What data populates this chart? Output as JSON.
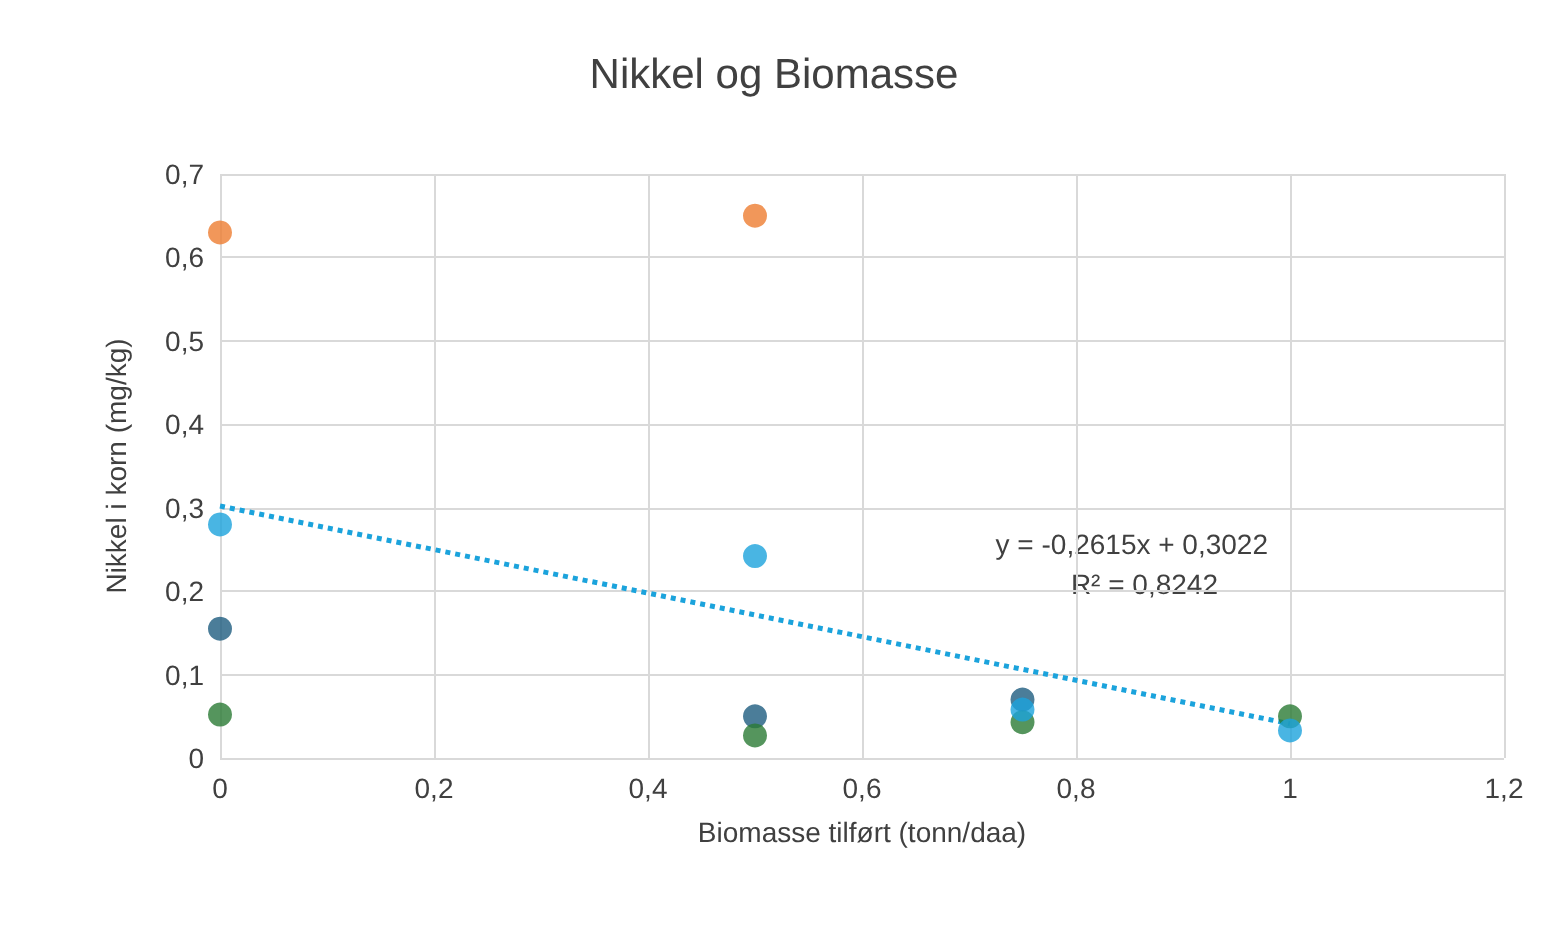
{
  "chart_data": {
    "type": "scatter",
    "title": "Nikkel og Biomasse",
    "xlabel": "Biomasse tilført (tonn/daa)",
    "ylabel": "Nikkel i korn (mg/kg)",
    "series": [
      {
        "color": "#ed7d31",
        "marker": "circle",
        "x": [
          0,
          0.5
        ],
        "values": [
          0.63,
          0.65
        ]
      },
      {
        "color": "#1e5d80",
        "marker": "circle",
        "x": [
          0,
          0.5,
          0.75
        ],
        "values": [
          0.155,
          0.05,
          0.07
        ]
      },
      {
        "color": "#2a7b35",
        "marker": "circle",
        "x": [
          0,
          0.5,
          0.75,
          1
        ],
        "values": [
          0.052,
          0.027,
          0.043,
          0.05
        ]
      },
      {
        "color": "#1ba3dc",
        "marker": "circle",
        "x": [
          0,
          0.5,
          0.75,
          1
        ],
        "values": [
          0.28,
          0.242,
          0.058,
          0.033
        ]
      },
      {
        "type": "line",
        "color": "#1ba3dc",
        "line_style": "dotted",
        "marker": "none",
        "x": [
          0,
          1
        ],
        "values": [
          0.302,
          0.041
        ]
      }
    ],
    "xlim": [
      0,
      1.2
    ],
    "xticks": [
      0,
      {
        "value": 0.2,
        "label": "0,2"
      },
      {
        "value": 0.4,
        "label": "0,4"
      },
      {
        "value": 0.6,
        "label": "0,6"
      },
      {
        "value": 0.8,
        "label": "0,8"
      },
      1,
      {
        "value": 1.2,
        "label": "1,2"
      }
    ],
    "ylim": [
      0,
      0.7
    ],
    "yticks": [
      0,
      {
        "value": 0.1,
        "label": "0,1"
      },
      {
        "value": 0.2,
        "label": "0,2"
      },
      {
        "value": 0.3,
        "label": "0,3"
      },
      {
        "value": 0.4,
        "label": "0,4"
      },
      {
        "value": 0.5,
        "label": "0,5"
      },
      {
        "value": 0.6,
        "label": "0,6"
      },
      {
        "value": 0.7,
        "label": "0,7"
      }
    ],
    "grid": true,
    "annotations": [
      "y = -0,2615x + 0,3022",
      "R² = 0,8242"
    ]
  }
}
